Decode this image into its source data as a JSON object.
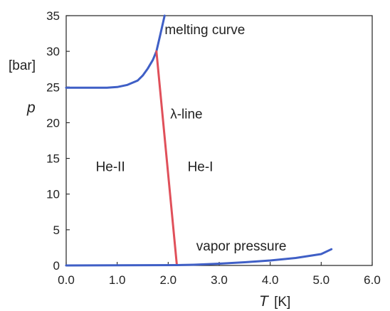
{
  "chart_data": {
    "type": "line",
    "title": "",
    "xlabel_var": "T",
    "xlabel_unit": "[K]",
    "ylabel_var": "p",
    "ylabel_unit": "[bar]",
    "xlim": [
      0.0,
      6.0
    ],
    "ylim": [
      0,
      35
    ],
    "x_ticks": [
      "0.0",
      "1.0",
      "2.0",
      "3.0",
      "4.0",
      "5.0",
      "6.0"
    ],
    "y_ticks": [
      "0",
      "5",
      "10",
      "15",
      "20",
      "25",
      "30",
      "35"
    ],
    "grid": false,
    "legend": "none",
    "series": [
      {
        "key": "melting",
        "color": "#3f5fc6",
        "x": [
          0.0,
          0.4,
          0.8,
          1.0,
          1.2,
          1.4,
          1.5,
          1.6,
          1.7,
          1.77,
          1.85,
          1.93
        ],
        "y": [
          24.9,
          24.9,
          24.9,
          25.0,
          25.3,
          25.9,
          26.6,
          27.6,
          28.8,
          30.0,
          32.5,
          35.0
        ]
      },
      {
        "key": "lambda",
        "color": "#e0505a",
        "x": [
          1.77,
          2.17
        ],
        "y": [
          30.0,
          0.05
        ]
      },
      {
        "key": "vapor",
        "color": "#3f5fc6",
        "x": [
          0.0,
          2.17,
          2.5,
          3.0,
          3.5,
          4.0,
          4.5,
          5.0,
          5.2
        ],
        "y": [
          0.0,
          0.05,
          0.1,
          0.25,
          0.45,
          0.7,
          1.05,
          1.6,
          2.27
        ]
      }
    ],
    "annotations": [
      {
        "key": "melting_curve",
        "text": "melting curve",
        "x": 1.93,
        "y": 32.4
      },
      {
        "key": "lambda_line",
        "text": "λ-line",
        "x": 2.04,
        "y": 20.6
      },
      {
        "key": "he_ii",
        "text": "He-II",
        "x": 0.58,
        "y": 13.2
      },
      {
        "key": "he_i",
        "text": "He-I",
        "x": 2.38,
        "y": 13.2
      },
      {
        "key": "vapor_pressure",
        "text": "vapor pressure",
        "x": 2.55,
        "y": 2.1
      }
    ]
  }
}
